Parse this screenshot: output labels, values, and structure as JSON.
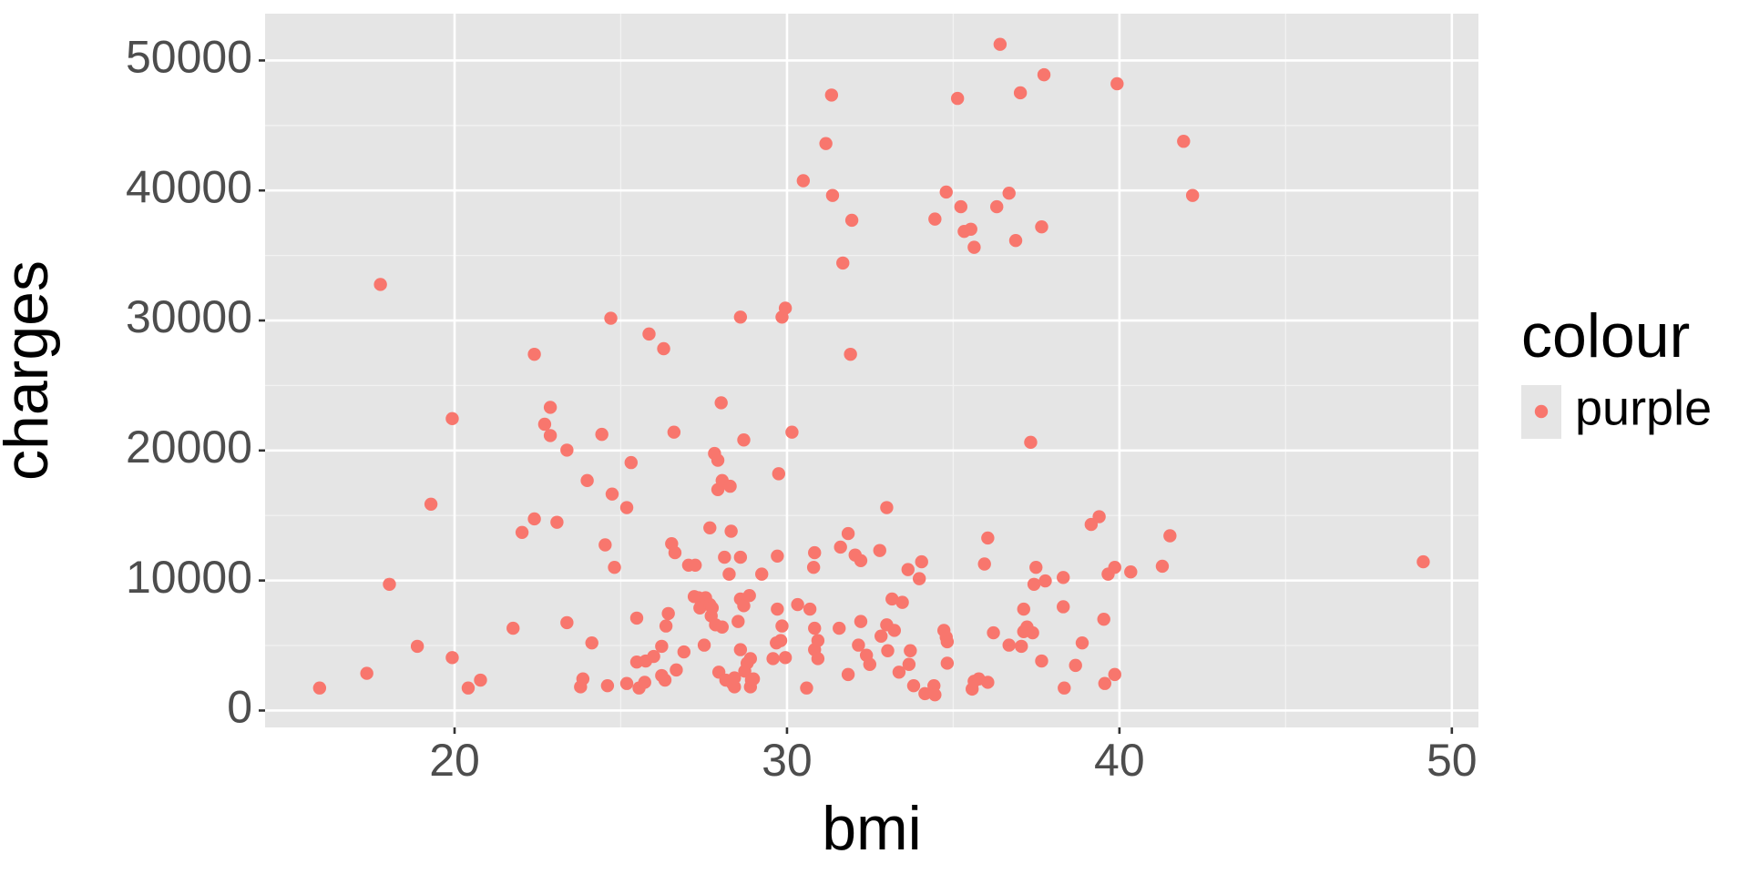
{
  "chart_data": {
    "type": "scatter",
    "x_label": "bmi",
    "y_label": "charges",
    "legend_title": "colour",
    "xlim": [
      14.3,
      50.8
    ],
    "ylim": [
      -1300,
      53600
    ],
    "xticks": [
      20,
      30,
      40,
      50
    ],
    "yticks": [
      0,
      10000,
      20000,
      30000,
      40000,
      50000
    ],
    "grid": true,
    "legend_position": "right",
    "series": [
      {
        "name": "purple",
        "color": "#F8766D",
        "x": [
          15.94,
          17.36,
          17.77,
          18.04,
          18.88,
          19.29,
          19.93,
          19.93,
          20.41,
          20.78,
          21.76,
          22.03,
          22.4,
          22.4,
          22.71,
          22.88,
          22.88,
          23.08,
          23.38,
          23.38,
          23.79,
          23.86,
          23.99,
          24.13,
          24.43,
          24.53,
          24.6,
          24.7,
          24.74,
          24.81,
          25.18,
          25.18,
          25.31,
          25.48,
          25.48,
          25.55,
          25.72,
          25.75,
          25.85,
          25.99,
          26.23,
          26.23,
          26.29,
          26.33,
          26.36,
          26.43,
          26.53,
          26.6,
          26.63,
          26.67,
          26.9,
          27.04,
          27.21,
          27.24,
          27.34,
          27.38,
          27.51,
          27.55,
          27.68,
          27.68,
          27.72,
          27.75,
          27.82,
          27.85,
          27.92,
          27.92,
          27.95,
          28.02,
          28.05,
          28.05,
          28.12,
          28.16,
          28.26,
          28.29,
          28.32,
          28.36,
          28.42,
          28.42,
          28.53,
          28.6,
          28.6,
          28.6,
          28.6,
          28.7,
          28.7,
          28.73,
          28.8,
          28.87,
          28.9,
          28.9,
          28.93,
          28.99,
          29.24,
          29.58,
          29.68,
          29.71,
          29.71,
          29.75,
          29.81,
          29.85,
          29.85,
          29.95,
          29.95,
          30.15,
          30.32,
          30.49,
          30.59,
          30.69,
          30.8,
          30.83,
          30.83,
          30.83,
          30.93,
          30.93,
          31.17,
          31.34,
          31.37,
          31.57,
          31.61,
          31.68,
          31.84,
          31.84,
          31.91,
          31.95,
          32.05,
          32.15,
          32.22,
          32.22,
          32.39,
          32.49,
          32.79,
          32.83,
          33.0,
          33.0,
          33.03,
          33.16,
          33.23,
          33.37,
          33.47,
          33.64,
          33.67,
          33.71,
          33.81,
          33.98,
          34.05,
          34.15,
          34.42,
          34.45,
          34.45,
          34.72,
          34.79,
          34.79,
          34.82,
          34.82,
          35.13,
          35.23,
          35.33,
          35.53,
          35.57,
          35.63,
          35.63,
          35.77,
          35.94,
          36.04,
          36.04,
          36.21,
          36.31,
          36.41,
          36.68,
          36.68,
          36.88,
          37.02,
          37.05,
          37.12,
          37.12,
          37.22,
          37.33,
          37.39,
          37.43,
          37.49,
          37.66,
          37.66,
          37.73,
          37.77,
          38.31,
          38.31,
          38.34,
          38.68,
          38.88,
          39.15,
          39.39,
          39.53,
          39.56,
          39.66,
          39.86,
          39.86,
          39.93,
          40.34,
          41.29,
          41.52,
          41.93,
          42.2,
          49.14
        ],
        "values": [
          1730,
          2860,
          32770,
          9710,
          4940,
          15870,
          22450,
          4070,
          1730,
          2340,
          6330,
          13700,
          27400,
          14740,
          22020,
          23320,
          21150,
          14480,
          20030,
          6760,
          1820,
          2430,
          17690,
          5200,
          21240,
          12740,
          1910,
          30170,
          16650,
          11010,
          15610,
          2080,
          19070,
          7110,
          3730,
          1730,
          2170,
          3810,
          28960,
          4160,
          4940,
          2690,
          27830,
          2340,
          6500,
          7460,
          12830,
          21410,
          12140,
          3120,
          4510,
          11180,
          8760,
          11180,
          8670,
          7890,
          5030,
          8670,
          14050,
          8150,
          7280,
          7890,
          19770,
          6590,
          16990,
          19250,
          2950,
          23670,
          6420,
          17690,
          11790,
          2340,
          10490,
          17250,
          13790,
          2080,
          1820,
          2510,
          6850,
          8580,
          4680,
          11790,
          30260,
          20810,
          8060,
          3030,
          3640,
          8840,
          1820,
          3990,
          2340,
          2430,
          10490,
          3990,
          5200,
          7800,
          11880,
          18210,
          5380,
          30260,
          6500,
          30950,
          4070,
          21410,
          8150,
          40750,
          1730,
          7800,
          11010,
          12140,
          6330,
          4680,
          5380,
          3990,
          43610,
          47340,
          39620,
          6330,
          12570,
          34420,
          13610,
          2770,
          27400,
          37710,
          11960,
          5030,
          6850,
          11530,
          4250,
          3550,
          12310,
          5720,
          15610,
          6590,
          4600,
          8580,
          6160,
          2950,
          8320,
          10840,
          3550,
          4600,
          1910,
          10140,
          11440,
          1300,
          1910,
          37800,
          1210,
          6160,
          5640,
          39880,
          5290,
          3640,
          47080,
          38750,
          36850,
          37020,
          1650,
          35630,
          2250,
          2430,
          11270,
          2170,
          13270,
          5980,
          38750,
          51240,
          39790,
          5030,
          36150,
          47510,
          4940,
          7800,
          6070,
          6420,
          20630,
          5980,
          9710,
          11010,
          37200,
          3810,
          48900,
          9970,
          10230,
          7980,
          1730,
          3470,
          5200,
          14310,
          14910,
          7020,
          2080,
          10490,
          11010,
          2770,
          48210,
          10660,
          11100,
          13440,
          43780,
          39620,
          11440
        ]
      }
    ]
  }
}
